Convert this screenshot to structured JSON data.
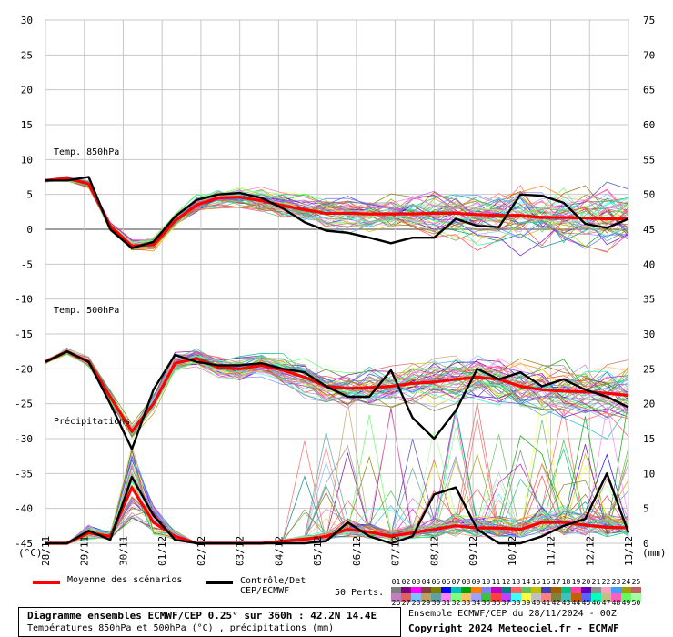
{
  "chart_data": {
    "type": "line",
    "x_labels": [
      "28/11",
      "29/11",
      "30/11",
      "01/12",
      "02/12",
      "03/12",
      "04/12",
      "05/12",
      "06/12",
      "07/12",
      "08/12",
      "09/12",
      "10/12",
      "11/12",
      "12/12",
      "13/12"
    ],
    "left_axis": {
      "unit": "(°C)",
      "min": -45,
      "max": 30,
      "ticks": [
        30,
        25,
        20,
        15,
        10,
        5,
        0,
        -5,
        -10,
        -15,
        -20,
        -25,
        -30,
        -35,
        -40,
        -45
      ]
    },
    "right_axis": {
      "unit": "(mm)",
      "min": 0,
      "max": 75,
      "ticks": [
        75,
        70,
        65,
        60,
        55,
        50,
        45,
        40,
        35,
        30,
        25,
        20,
        15,
        10,
        5,
        0
      ]
    },
    "panel_labels": {
      "t850": "Temp. 850hPa",
      "t500": "Temp. 500hPa",
      "precip": "Précipitations"
    },
    "series": [
      {
        "name": "Moyenne des scénarios",
        "color": "#ff0000",
        "t850": [
          7,
          7.3,
          6.5,
          0.5,
          -2.4,
          -2.2,
          1.2,
          3.5,
          4.5,
          4.6,
          4.1,
          3.4,
          2.8,
          2.3,
          2.3,
          2.2,
          2.2,
          2.2,
          2.3,
          2.3,
          2.1,
          2,
          2,
          1.7,
          1.7,
          1.6,
          1.5,
          1.5
        ],
        "t500": [
          -19,
          -17.5,
          -19,
          -24,
          -29,
          -25,
          -19.2,
          -18.5,
          -19.8,
          -20,
          -19.5,
          -20.2,
          -21.2,
          -22.5,
          -22.8,
          -22.7,
          -22.5,
          -22.1,
          -21.9,
          -21.5,
          -21.2,
          -21.5,
          -22.5,
          -23,
          -23.2,
          -23.3,
          -23.5,
          -23.8
        ],
        "precip": [
          0,
          0,
          1.5,
          1,
          8,
          3,
          1,
          0,
          0,
          0,
          0,
          0.3,
          0.6,
          1,
          2,
          1.6,
          1,
          1.5,
          2,
          2.5,
          2.2,
          2.2,
          2,
          3,
          3,
          2.6,
          2.3,
          2.2
        ]
      },
      {
        "name": "Contrôle/Det CEP/ECMWF",
        "color": "#000000",
        "t850": [
          7,
          7,
          7.5,
          0,
          -2.7,
          -1.8,
          1.8,
          4.2,
          5,
          5.2,
          4.5,
          3,
          1,
          -0.2,
          -0.5,
          -1.2,
          -2,
          -1.2,
          -1.2,
          1.5,
          0.5,
          0.3,
          5,
          4.8,
          3.8,
          0.8,
          0.2,
          1.5
        ],
        "t500": [
          -19,
          -17.5,
          -19,
          -25,
          -31.5,
          -23,
          -18,
          -19,
          -19.5,
          -19.5,
          -19.2,
          -20,
          -20.5,
          -22.5,
          -24,
          -24,
          -20.2,
          -27,
          -30,
          -26,
          -20,
          -21.5,
          -20.5,
          -22.5,
          -21.5,
          -23,
          -24,
          -25.5
        ],
        "precip": [
          0,
          0,
          1.8,
          0.5,
          9.5,
          4,
          0.5,
          0,
          0,
          0,
          0,
          0,
          0,
          0.3,
          3,
          1,
          0,
          1,
          7,
          8,
          2,
          0,
          0,
          1,
          2.5,
          3.5,
          10,
          1.5
        ]
      }
    ]
  },
  "legend": {
    "mean_label": "Moyenne des scénarios",
    "control_label_1": "Contrôle/Det",
    "control_label_2": "CEP/ECMWF",
    "perts_label": "50 Perts.",
    "pert_numbers_top": [
      "01",
      "02",
      "03",
      "04",
      "05",
      "06",
      "07",
      "08",
      "09",
      "10",
      "11",
      "12",
      "13",
      "14",
      "15",
      "16",
      "17",
      "18",
      "19",
      "20",
      "21",
      "22",
      "23",
      "24",
      "25"
    ],
    "pert_numbers_bottom": [
      "26",
      "27",
      "28",
      "29",
      "30",
      "31",
      "32",
      "33",
      "34",
      "35",
      "36",
      "37",
      "38",
      "39",
      "40",
      "41",
      "42",
      "43",
      "44",
      "45",
      "46",
      "47",
      "48",
      "49",
      "50"
    ],
    "pert_colors": [
      "#808080",
      "#800080",
      "#ff00ff",
      "#804040",
      "#808000",
      "#0000ff",
      "#00c0c0",
      "#00a000",
      "#ff8000",
      "#8080ff",
      "#c000c0",
      "#008080",
      "#ff6060",
      "#60c060",
      "#c0c000",
      "#4040c0",
      "#a06000",
      "#00c080",
      "#ff40a0",
      "#6000c0",
      "#909090",
      "#ffa0c0",
      "#40a0ff",
      "#a0a000",
      "#c06060",
      "#c080c0",
      "#e06060",
      "#80c0ff",
      "#c0a060",
      "#60a0a0",
      "#ff80ff",
      "#80ff80",
      "#ffc060",
      "#a0a0ff",
      "#40c040",
      "#ff4040",
      "#c040ff",
      "#40ffff",
      "#ffff40",
      "#c0c0c0",
      "#ff8080",
      "#808040",
      "#40c0c0",
      "#c06000",
      "#6060ff",
      "#00ffc0",
      "#c0c080",
      "#ff60c0",
      "#60ff60",
      "#a0ffa0"
    ]
  },
  "title": {
    "line1": "Diagramme ensembles ECMWF/CEP 0.25° sur 360h : 42.2N 14.4E",
    "line2": "Températures 850hPa et 500hPa (°C) , précipitations (mm)"
  },
  "run_info": "Ensemble ECMWF/CEP du 28/11/2024 - 00Z",
  "copyright": "Copyright 2024 Meteociel.fr - ECMWF"
}
